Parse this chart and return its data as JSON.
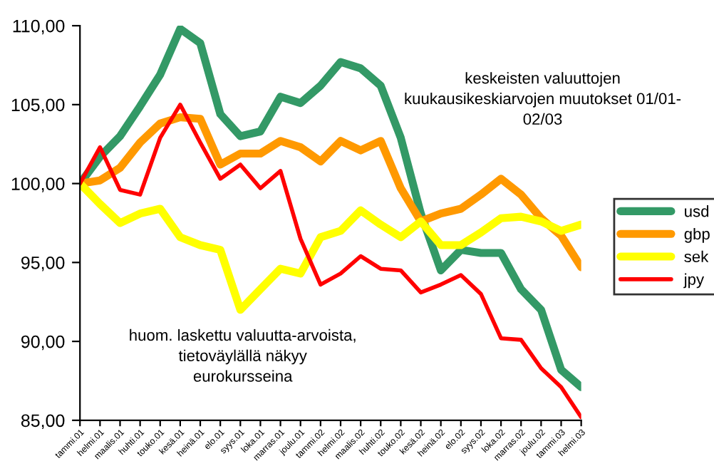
{
  "chart_data": {
    "type": "line",
    "title": "keskeisten valuuttojen\nkuukausikeskiarvojen muutokset 01/01-\n02/03",
    "annotations": [
      "huom. laskettu valuutta-arvoista,\ntietoväylällä näkyy\neurokursseina"
    ],
    "categories": [
      "tammi.01",
      "helmi.01",
      "maalis.01",
      "huhti.01",
      "touko.01",
      "kesä.01",
      "heinä.01",
      "elo.01",
      "syys.01",
      "loka.01",
      "marras.01",
      "joulu.01",
      "tammi.02",
      "helmi.02",
      "maalis.02",
      "huhti.02",
      "touko.02",
      "kesä.02",
      "heinä.02",
      "elo.02",
      "syys.02",
      "loka.02",
      "marras.02",
      "joulu.02",
      "tammi.03",
      "helmi.03"
    ],
    "series": [
      {
        "name": "usd",
        "color": "#339966",
        "values": [
          100,
          101.7,
          103.0,
          104.9,
          106.9,
          109.8,
          108.9,
          104.4,
          103.0,
          103.3,
          105.5,
          105.1,
          106.2,
          107.7,
          107.3,
          106.2,
          102.9,
          98.1,
          94.5,
          95.8,
          95.6,
          95.6,
          93.3,
          92.0,
          88.2,
          87.1
        ]
      },
      {
        "name": "gbp",
        "color": "#ff9900",
        "values": [
          100,
          100.2,
          101.0,
          102.6,
          103.8,
          104.2,
          104.1,
          101.2,
          101.9,
          101.9,
          102.7,
          102.3,
          101.4,
          102.7,
          102.1,
          102.7,
          99.7,
          97.6,
          98.1,
          98.4,
          99.3,
          100.3,
          99.3,
          97.8,
          96.7,
          94.7
        ]
      },
      {
        "name": "sek",
        "color": "#ffff00",
        "values": [
          100,
          98.7,
          97.5,
          98.1,
          98.4,
          96.6,
          96.1,
          95.8,
          92.0,
          93.3,
          94.6,
          94.3,
          96.6,
          97.0,
          98.3,
          97.4,
          96.6,
          97.6,
          96.1,
          96.1,
          96.9,
          97.8,
          97.9,
          97.6,
          97.0,
          97.4
        ]
      },
      {
        "name": "jpy",
        "color": "#ff0000",
        "values": [
          100,
          102.3,
          99.6,
          99.3,
          102.9,
          105.0,
          102.6,
          100.3,
          101.2,
          99.7,
          100.8,
          96.5,
          93.6,
          94.3,
          95.4,
          94.6,
          94.5,
          93.1,
          93.6,
          94.2,
          93.0,
          90.2,
          90.1,
          88.3,
          87.1,
          85.2
        ]
      }
    ],
    "ylim": [
      85,
      110
    ],
    "yticks": [
      {
        "value": 85,
        "label": "85,00"
      },
      {
        "value": 90,
        "label": "90,00"
      },
      {
        "value": 95,
        "label": "95,00"
      },
      {
        "value": 100,
        "label": "100,00"
      },
      {
        "value": 105,
        "label": "105,00"
      },
      {
        "value": 110,
        "label": "110,00"
      }
    ],
    "grid": false,
    "legend": "right",
    "marker": "none",
    "line_style": "solid"
  }
}
